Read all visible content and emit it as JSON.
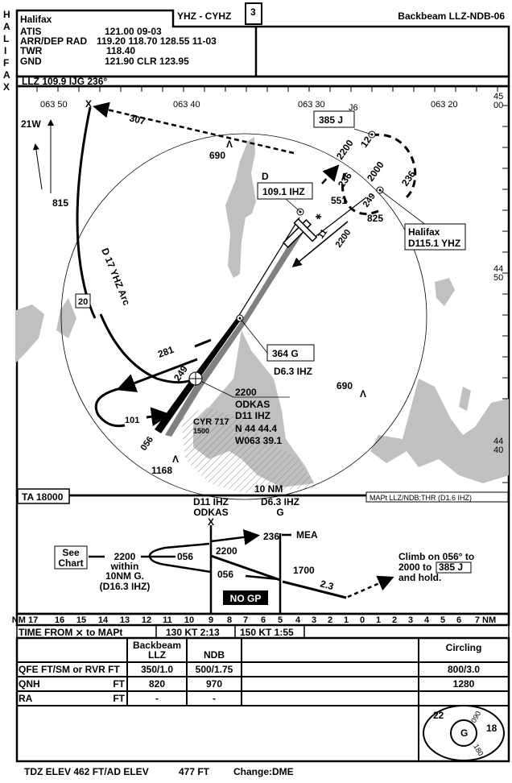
{
  "side_label": [
    "H",
    "A",
    "L",
    "I",
    "F",
    "A",
    "X"
  ],
  "header": {
    "title": "YHZ - CYHZ",
    "page_number": "3",
    "procedure": "Backbeam LLZ-NDB-06",
    "comm": {
      "airport": "Halifax",
      "rows": [
        {
          "label": "ATIS",
          "values": "121.00   09-03"
        },
        {
          "label": "ARR/DEP RAD",
          "values": "119.20   118.70   128.55   11-03"
        },
        {
          "label": "TWR",
          "values": "118.40"
        },
        {
          "label": "GND",
          "values": "121.90     CLR     123.95"
        }
      ]
    },
    "nav_line": "LLZ    109.9   IJG   236°"
  },
  "plan": {
    "lon_labels": [
      "063 50",
      "063 40",
      "063 30",
      "063 20"
    ],
    "lat_labels": [
      [
        "45",
        "00"
      ],
      [
        "44",
        "50"
      ],
      [
        "44",
        "40"
      ]
    ],
    "variation": "21W",
    "fix_x": "X",
    "track_307": "307",
    "elevations": [
      "690",
      "815",
      "551",
      "825",
      "690",
      "1168"
    ],
    "arc_label": "D 17 YHZ Arc",
    "arc_radial": "20",
    "ndb_j": {
      "ident": "J6",
      "label": "385 J"
    },
    "hold": {
      "alt": "2000",
      "in": "236",
      "out": "236",
      "alt2": "2200",
      "radial": "12",
      "inbound": "249"
    },
    "llz": {
      "prefix": "D",
      "label": "109.1 IHZ"
    },
    "vor": {
      "name": "Halifax",
      "label": "D115.1 YHZ"
    },
    "radial_11": {
      "radial": "11",
      "alt": "2200"
    },
    "ndb_g": {
      "label": "364 G",
      "dme": "D6.3 IHZ"
    },
    "odkas": {
      "alt": "2200",
      "name": "ODKAS",
      "dme": "D11 IHZ",
      "lat": "N 44 44.4",
      "lon": "W063 39.1"
    },
    "pt": {
      "out": "281",
      "in": "249",
      "turn": "101",
      "final": "056"
    },
    "restricted": {
      "name": "CYR 717",
      "alt": "1500"
    },
    "ring": "10 NM"
  },
  "profile": {
    "ta": "TA 18000",
    "mapt": "MAPt  LLZ/NDB:THR (D1.6 IHZ)",
    "fix1": {
      "dme": "D11 IHZ",
      "name": "ODKAS",
      "sym": "X"
    },
    "fix2": {
      "dme": "D6.3 IHZ",
      "name": "G"
    },
    "mea_track": "236",
    "mea": "MEA",
    "see_chart": [
      "See",
      "Chart"
    ],
    "pt_text": [
      "2200",
      "within",
      "10NM G.",
      "(D16.3 IHZ)"
    ],
    "alt_2200": "2200",
    "track_056a": "056",
    "track_056b": "056",
    "alt_1700": "1700",
    "dist_23": "2.3",
    "missed": [
      "Climb on 056° to",
      "2000 to",
      "385 J",
      "and hold."
    ],
    "no_gp": "NO GP"
  },
  "scale": [
    "NM 17",
    "16",
    "15",
    "14",
    "13",
    "12",
    "11",
    "10",
    "9",
    "8",
    "7",
    "6",
    "5",
    "4",
    "3",
    "2",
    "1",
    "0",
    "1",
    "2",
    "3",
    "4",
    "5",
    "6",
    "7 NM"
  ],
  "timing": {
    "label": "TIME FROM ⨯ to MAPt",
    "t1": "130 KT 2:13",
    "t2": "150 KT 1:55"
  },
  "minima": {
    "headers": [
      "Backbeam",
      "LLZ",
      "NDB",
      "Circling"
    ],
    "rows": [
      {
        "label": "QFE FT/SM or RVR FT",
        "unit": "",
        "llz": "350/1.0",
        "ndb": "500/1.75",
        "circ": "800/3.0"
      },
      {
        "label": "QNH",
        "unit": "FT",
        "llz": "820",
        "ndb": "970",
        "circ": "1280"
      },
      {
        "label": "RA",
        "unit": "FT",
        "llz": "-",
        "ndb": "-",
        "circ": ""
      }
    ],
    "msa": {
      "center": "G",
      "alt_w": "22",
      "alt_e": "18",
      "b1": "090",
      "b2": "180"
    }
  },
  "footer": {
    "elev": "TDZ ELEV 462 FT/AD ELEV",
    "ad": "477 FT",
    "change": "Change:DME"
  }
}
